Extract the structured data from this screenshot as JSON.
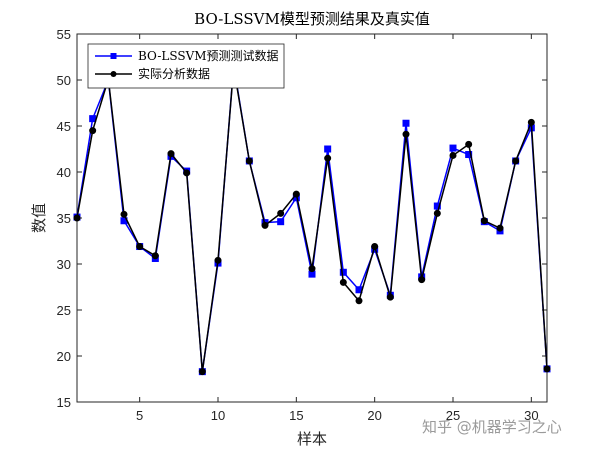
{
  "chart_data": {
    "type": "line",
    "title": "BO-LSSVM模型预测结果及真实值",
    "xlabel": "样本",
    "ylabel": "数值",
    "xlim": [
      1,
      31
    ],
    "ylim": [
      15,
      55
    ],
    "xticks": [
      5,
      10,
      15,
      20,
      25,
      30
    ],
    "yticks": [
      15,
      20,
      25,
      30,
      35,
      40,
      45,
      50,
      55
    ],
    "grid": false,
    "legend_position": "top-left",
    "x": [
      1,
      2,
      3,
      4,
      5,
      6,
      7,
      8,
      9,
      10,
      11,
      12,
      13,
      14,
      15,
      16,
      17,
      18,
      19,
      20,
      21,
      22,
      23,
      24,
      25,
      26,
      27,
      28,
      29,
      30,
      31
    ],
    "series": [
      {
        "name": "BO-LSSVM预测测试数据",
        "color": "#0000ff",
        "marker": "square",
        "values": [
          35.1,
          45.8,
          50.0,
          34.7,
          31.9,
          30.6,
          41.7,
          40.1,
          18.3,
          30.1,
          51.6,
          41.2,
          34.5,
          34.6,
          37.2,
          28.9,
          42.5,
          29.1,
          27.2,
          31.6,
          26.6,
          45.3,
          28.6,
          36.3,
          42.6,
          41.9,
          34.6,
          33.6,
          41.2,
          44.8,
          18.6
        ]
      },
      {
        "name": "实际分析数据",
        "color": "#000000",
        "marker": "circle",
        "values": [
          35.0,
          44.5,
          50.1,
          35.4,
          31.9,
          30.9,
          42.0,
          39.9,
          18.3,
          30.4,
          51.4,
          41.2,
          34.2,
          35.5,
          37.6,
          29.5,
          41.5,
          28.0,
          26.0,
          31.9,
          26.4,
          44.1,
          28.3,
          35.5,
          41.8,
          43.0,
          34.7,
          33.9,
          41.2,
          45.4,
          18.6
        ]
      }
    ]
  },
  "watermark": "知乎 @机器学习之心"
}
